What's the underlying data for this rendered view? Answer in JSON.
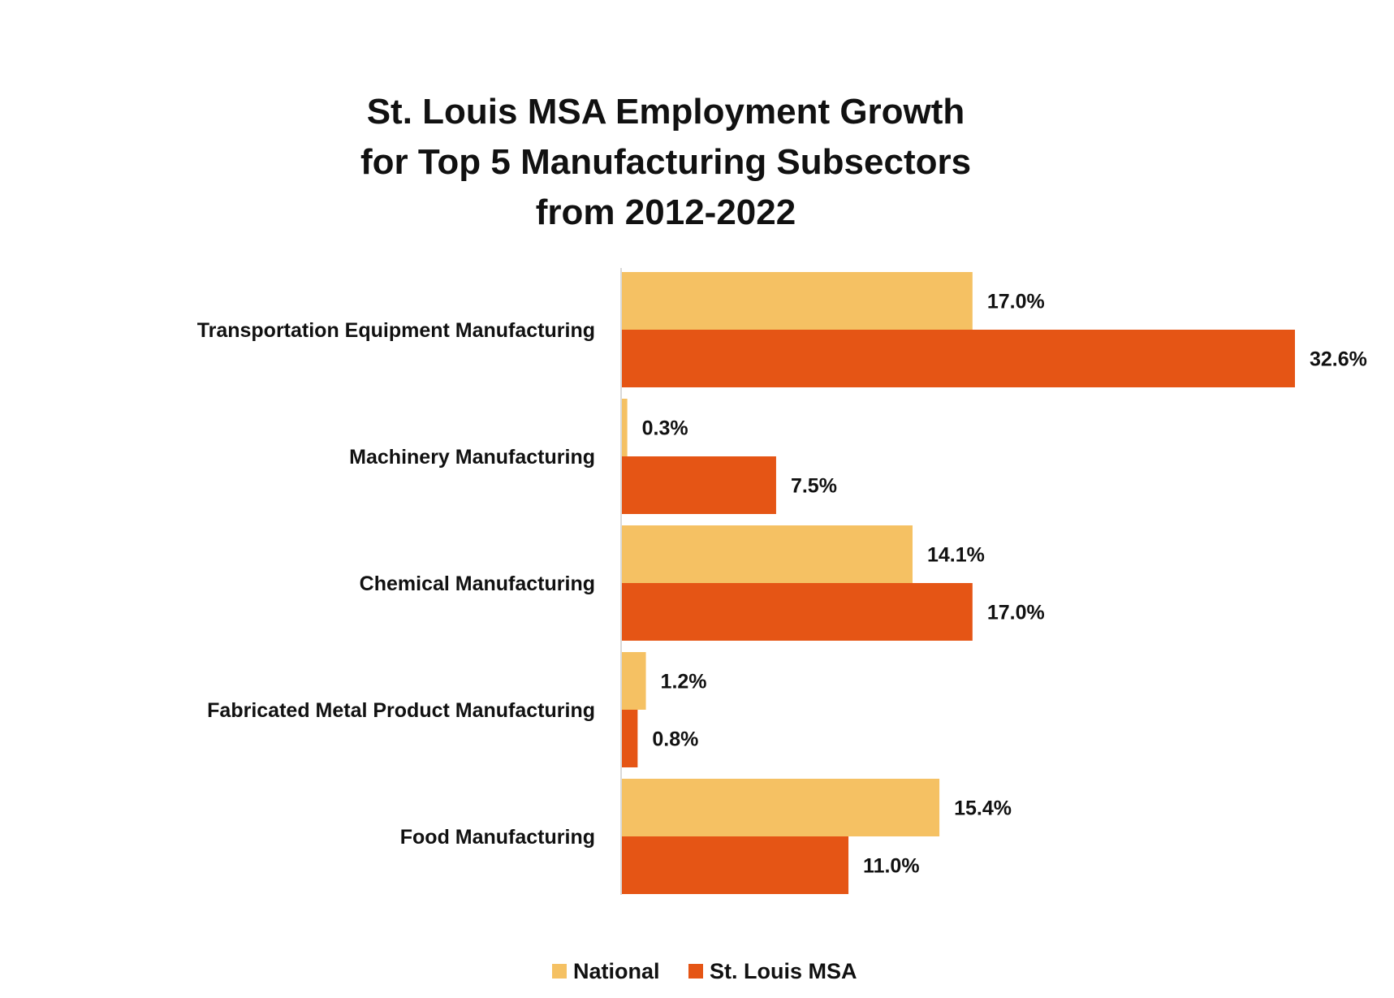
{
  "chart_data": {
    "type": "bar",
    "orientation": "horizontal",
    "title_lines": [
      "St. Louis MSA Employment Growth",
      "for Top 5 Manufacturing Subsectors",
      "from 2012-2022"
    ],
    "categories": [
      "Transportation Equipment Manufacturing",
      "Machinery Manufacturing",
      "Chemical Manufacturing",
      "Fabricated Metal Product Manufacturing",
      "Food Manufacturing"
    ],
    "series": [
      {
        "name": "National",
        "color": "#F5C163",
        "values": [
          17.0,
          0.3,
          14.1,
          1.2,
          15.4
        ],
        "labels": [
          "17.0%",
          "0.3%",
          "14.1%",
          "1.2%",
          "15.4%"
        ]
      },
      {
        "name": "St. Louis MSA",
        "color": "#E55515",
        "values": [
          32.6,
          7.5,
          17.0,
          0.8,
          11.0
        ],
        "labels": [
          "32.6%",
          "7.5%",
          "17.0%",
          "0.8%",
          "11.0%"
        ]
      }
    ],
    "xlim": [
      0,
      32.6
    ],
    "grid": false,
    "legend_position": "bottom-center",
    "axis_color": "#D9D9D9"
  }
}
